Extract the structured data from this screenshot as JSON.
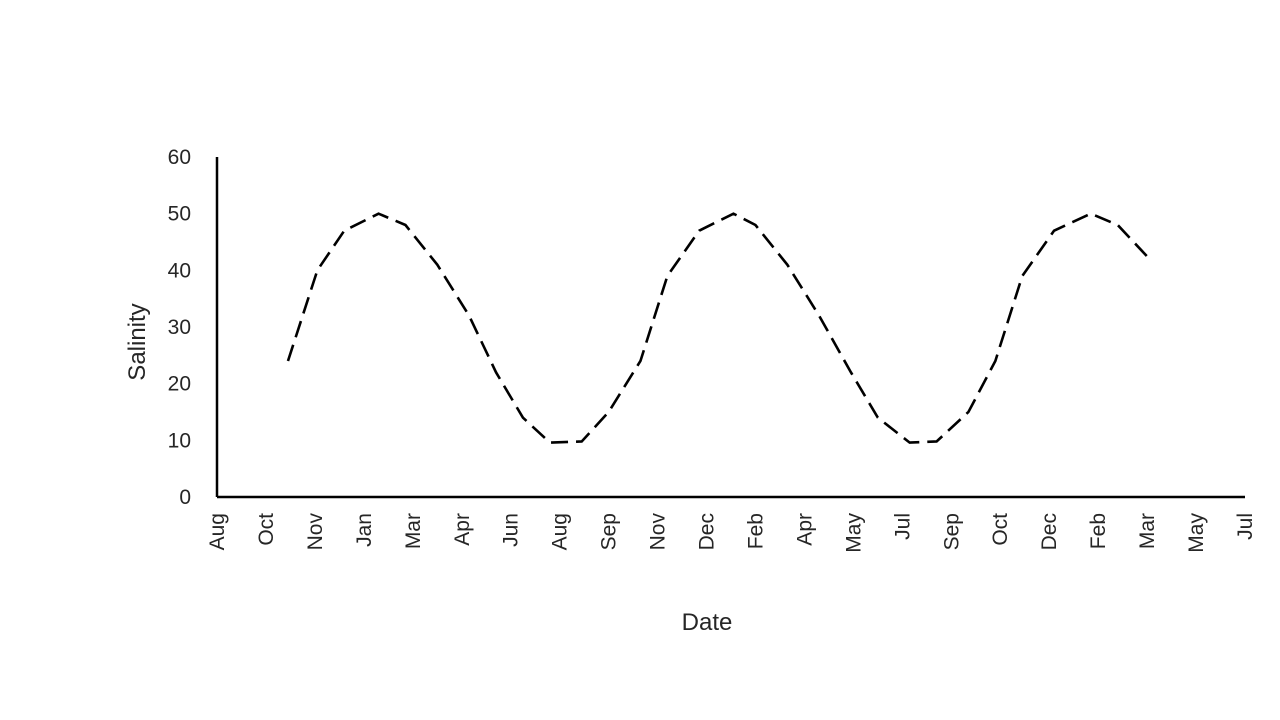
{
  "chart_data": {
    "type": "line",
    "title": "",
    "xlabel": "Date",
    "ylabel": "Salinity",
    "ylim": [
      0,
      60
    ],
    "yticks": [
      0,
      10,
      20,
      30,
      40,
      50,
      60
    ],
    "xtick_labels": [
      "Aug",
      "Oct",
      "Nov",
      "Jan",
      "Mar",
      "Apr",
      "Jun",
      "Aug",
      "Sep",
      "Nov",
      "Dec",
      "Feb",
      "Apr",
      "May",
      "Jul",
      "Sep",
      "Oct",
      "Dec",
      "Feb",
      "Mar",
      "May",
      "Jul"
    ],
    "grid": false,
    "legend": "none",
    "series": [
      {
        "line_style": "dashed",
        "color": "#000000",
        "points": [
          {
            "x": 1.45,
            "y": 24
          },
          {
            "x": 2.05,
            "y": 40
          },
          {
            "x": 2.6,
            "y": 47
          },
          {
            "x": 3.3,
            "y": 50
          },
          {
            "x": 3.85,
            "y": 48
          },
          {
            "x": 4.5,
            "y": 41
          },
          {
            "x": 5.15,
            "y": 32
          },
          {
            "x": 5.7,
            "y": 22
          },
          {
            "x": 6.25,
            "y": 14
          },
          {
            "x": 6.8,
            "y": 9.6
          },
          {
            "x": 7.45,
            "y": 9.8
          },
          {
            "x": 8.0,
            "y": 15
          },
          {
            "x": 8.65,
            "y": 24
          },
          {
            "x": 9.2,
            "y": 39
          },
          {
            "x": 9.85,
            "y": 47
          },
          {
            "x": 10.55,
            "y": 50
          },
          {
            "x": 11.0,
            "y": 48
          },
          {
            "x": 11.65,
            "y": 41
          },
          {
            "x": 12.3,
            "y": 32
          },
          {
            "x": 12.95,
            "y": 22
          },
          {
            "x": 13.5,
            "y": 14
          },
          {
            "x": 14.15,
            "y": 9.6
          },
          {
            "x": 14.7,
            "y": 9.8
          },
          {
            "x": 15.35,
            "y": 15
          },
          {
            "x": 15.9,
            "y": 24
          },
          {
            "x": 16.45,
            "y": 39
          },
          {
            "x": 17.1,
            "y": 47
          },
          {
            "x": 17.85,
            "y": 50
          },
          {
            "x": 18.4,
            "y": 48
          },
          {
            "x": 19.05,
            "y": 42
          }
        ]
      }
    ]
  }
}
